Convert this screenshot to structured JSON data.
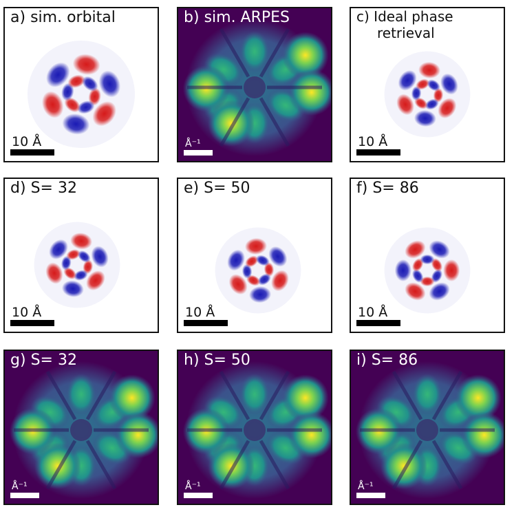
{
  "panels": [
    {
      "id": "a",
      "letter": "a)",
      "title": "sim. orbital",
      "kind": "orbital",
      "scale_text": "10 Å"
    },
    {
      "id": "b",
      "letter": "b)",
      "title": "sim. ARPES",
      "kind": "arpes",
      "scale_text": "Å⁻¹"
    },
    {
      "id": "c",
      "letter": "c)",
      "title": "Ideal phase",
      "title_line2": "retrieval",
      "kind": "orbital",
      "scale_text": "10 Å"
    },
    {
      "id": "d",
      "letter": "d)",
      "title": "S= 32",
      "kind": "orbital",
      "scale_text": "10 Å"
    },
    {
      "id": "e",
      "letter": "e)",
      "title": "S= 50",
      "kind": "orbital",
      "scale_text": "10 Å"
    },
    {
      "id": "f",
      "letter": "f)",
      "title": "S= 86",
      "kind": "orbital",
      "scale_text": "10 Å"
    },
    {
      "id": "g",
      "letter": "g)",
      "title": "S= 32",
      "kind": "arpes",
      "scale_text": "Å⁻¹"
    },
    {
      "id": "h",
      "letter": "h)",
      "title": "S= 50",
      "kind": "arpes",
      "scale_text": "Å⁻¹"
    },
    {
      "id": "i",
      "letter": "i)",
      "title": "S= 86",
      "kind": "arpes",
      "scale_text": "Å⁻¹"
    }
  ],
  "colors": {
    "positive_lobe": "#1a1ab4",
    "negative_lobe": "#d61a1a",
    "arpes_background": "#440154",
    "arpes_mid": "#21918c",
    "arpes_peak": "#fde725"
  }
}
